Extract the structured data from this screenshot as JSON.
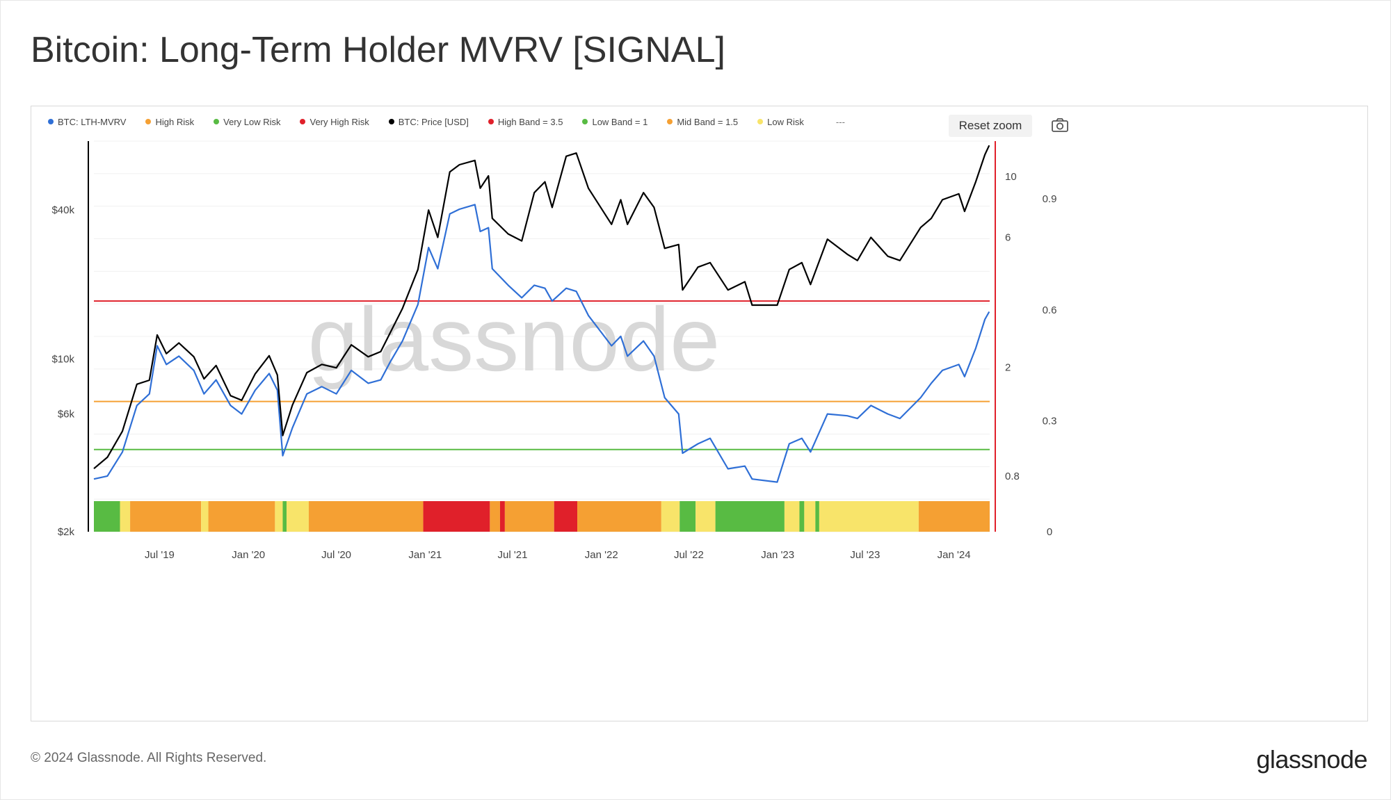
{
  "title": "Bitcoin: Long-Term Holder MVRV [SIGNAL]",
  "footer": {
    "copyright": "© 2024 Glassnode. All Rights Reserved.",
    "logo": "glassnode"
  },
  "toolbar": {
    "reset_zoom": "Reset zoom",
    "camera_icon": "camera-icon"
  },
  "watermark": "glassnode",
  "legend": [
    {
      "label": "BTC: LTH-MVRV",
      "color": "#2f6fd6"
    },
    {
      "label": "High Risk",
      "color": "#f5a033"
    },
    {
      "label": "Very Low Risk",
      "color": "#58bb43"
    },
    {
      "label": "Very High Risk",
      "color": "#e0202a"
    },
    {
      "label": "BTC: Price [USD]",
      "color": "#000000"
    },
    {
      "label": "High Band = 3.5",
      "color": "#e0202a"
    },
    {
      "label": "Low Band = 1",
      "color": "#58bb43"
    },
    {
      "label": "Mid Band = 1.5",
      "color": "#f5a033"
    },
    {
      "label": "Low Risk",
      "color": "#f8e46a"
    }
  ],
  "legend_more": "---",
  "chart_data": {
    "type": "line",
    "x_type": "date",
    "x_range": [
      "2019-02-15",
      "2024-03-15"
    ],
    "x_ticks": [
      {
        "date": "2019-07-01",
        "label": "Jul '19"
      },
      {
        "date": "2020-01-01",
        "label": "Jan '20"
      },
      {
        "date": "2020-07-01",
        "label": "Jul '20"
      },
      {
        "date": "2021-01-01",
        "label": "Jan '21"
      },
      {
        "date": "2021-07-01",
        "label": "Jul '21"
      },
      {
        "date": "2022-01-01",
        "label": "Jan '22"
      },
      {
        "date": "2022-07-01",
        "label": "Jul '22"
      },
      {
        "date": "2023-01-01",
        "label": "Jan '23"
      },
      {
        "date": "2023-07-01",
        "label": "Jul '23"
      },
      {
        "date": "2024-01-01",
        "label": "Jan '24"
      }
    ],
    "axes": {
      "price": {
        "scale": "log",
        "ticks": [
          {
            "value": 2000,
            "label": "$2k"
          },
          {
            "value": 6000,
            "label": "$6k"
          },
          {
            "value": 10000,
            "label": "$10k"
          },
          {
            "value": 40000,
            "label": "$40k"
          }
        ]
      },
      "mvrv": {
        "scale": "log",
        "ticks": [
          {
            "value": 0.8,
            "label": "0.8"
          },
          {
            "value": 2,
            "label": "2"
          },
          {
            "value": 6,
            "label": "6"
          },
          {
            "value": 10,
            "label": "10"
          }
        ]
      },
      "signal": {
        "ticks": [
          {
            "value": 0,
            "label": "0"
          },
          {
            "value": 0.3,
            "label": "0.3"
          },
          {
            "value": 0.6,
            "label": "0.6"
          },
          {
            "value": 0.9,
            "label": "0.9"
          }
        ]
      }
    },
    "bands": [
      {
        "name": "High Band = 3.5",
        "value": 3.5,
        "color": "#e0202a"
      },
      {
        "name": "Mid Band = 1.5",
        "value": 1.5,
        "color": "#f5a033"
      },
      {
        "name": "Low Band = 1",
        "value": 1,
        "color": "#58bb43"
      }
    ],
    "series": [
      {
        "name": "BTC: Price [USD]",
        "color": "#000000",
        "axis": "price",
        "points": [
          [
            "2019-02-15",
            3600
          ],
          [
            "2019-03-15",
            4000
          ],
          [
            "2019-04-15",
            5100
          ],
          [
            "2019-05-15",
            7900
          ],
          [
            "2019-06-10",
            8200
          ],
          [
            "2019-06-26",
            12500
          ],
          [
            "2019-07-15",
            10500
          ],
          [
            "2019-08-10",
            11600
          ],
          [
            "2019-09-10",
            10200
          ],
          [
            "2019-10-01",
            8300
          ],
          [
            "2019-10-26",
            9400
          ],
          [
            "2019-11-25",
            7100
          ],
          [
            "2019-12-18",
            6800
          ],
          [
            "2020-01-15",
            8700
          ],
          [
            "2020-02-13",
            10300
          ],
          [
            "2020-03-01",
            8600
          ],
          [
            "2020-03-12",
            4900
          ],
          [
            "2020-04-01",
            6500
          ],
          [
            "2020-05-01",
            8800
          ],
          [
            "2020-06-01",
            9500
          ],
          [
            "2020-07-01",
            9200
          ],
          [
            "2020-08-01",
            11400
          ],
          [
            "2020-09-05",
            10200
          ],
          [
            "2020-10-01",
            10700
          ],
          [
            "2020-10-21",
            12800
          ],
          [
            "2020-11-15",
            16000
          ],
          [
            "2020-12-17",
            23000
          ],
          [
            "2021-01-08",
            40000
          ],
          [
            "2021-01-27",
            31000
          ],
          [
            "2021-02-21",
            57000
          ],
          [
            "2021-03-13",
            61000
          ],
          [
            "2021-04-14",
            63500
          ],
          [
            "2021-04-25",
            49000
          ],
          [
            "2021-05-12",
            55000
          ],
          [
            "2021-05-20",
            37000
          ],
          [
            "2021-06-22",
            32000
          ],
          [
            "2021-07-20",
            30000
          ],
          [
            "2021-08-15",
            47000
          ],
          [
            "2021-09-06",
            52000
          ],
          [
            "2021-09-21",
            41000
          ],
          [
            "2021-10-20",
            66000
          ],
          [
            "2021-11-10",
            68000
          ],
          [
            "2021-12-05",
            49000
          ],
          [
            "2022-01-22",
            35000
          ],
          [
            "2022-02-10",
            44000
          ],
          [
            "2022-02-24",
            35000
          ],
          [
            "2022-03-29",
            47000
          ],
          [
            "2022-04-20",
            41000
          ],
          [
            "2022-05-12",
            28000
          ],
          [
            "2022-06-10",
            29000
          ],
          [
            "2022-06-18",
            19000
          ],
          [
            "2022-07-20",
            23500
          ],
          [
            "2022-08-14",
            24500
          ],
          [
            "2022-09-20",
            19000
          ],
          [
            "2022-10-25",
            20500
          ],
          [
            "2022-11-09",
            16500
          ],
          [
            "2022-12-31",
            16500
          ],
          [
            "2023-01-25",
            23000
          ],
          [
            "2023-02-20",
            24500
          ],
          [
            "2023-03-10",
            20000
          ],
          [
            "2023-04-14",
            30500
          ],
          [
            "2023-05-25",
            26500
          ],
          [
            "2023-06-15",
            25000
          ],
          [
            "2023-07-13",
            31000
          ],
          [
            "2023-08-17",
            26000
          ],
          [
            "2023-09-11",
            25000
          ],
          [
            "2023-10-24",
            34000
          ],
          [
            "2023-11-15",
            37000
          ],
          [
            "2023-12-08",
            44000
          ],
          [
            "2024-01-11",
            46500
          ],
          [
            "2024-01-23",
            39500
          ],
          [
            "2024-02-15",
            52000
          ],
          [
            "2024-03-05",
            67000
          ],
          [
            "2024-03-14",
            73000
          ]
        ]
      },
      {
        "name": "BTC: LTH-MVRV",
        "color": "#2f6fd6",
        "axis": "mvrv",
        "points": [
          [
            "2019-02-15",
            0.78
          ],
          [
            "2019-03-15",
            0.8
          ],
          [
            "2019-04-15",
            0.98
          ],
          [
            "2019-05-15",
            1.45
          ],
          [
            "2019-06-10",
            1.6
          ],
          [
            "2019-06-26",
            2.4
          ],
          [
            "2019-07-15",
            2.05
          ],
          [
            "2019-08-10",
            2.2
          ],
          [
            "2019-09-10",
            1.95
          ],
          [
            "2019-10-01",
            1.6
          ],
          [
            "2019-10-26",
            1.8
          ],
          [
            "2019-11-25",
            1.45
          ],
          [
            "2019-12-18",
            1.35
          ],
          [
            "2020-01-15",
            1.65
          ],
          [
            "2020-02-13",
            1.9
          ],
          [
            "2020-03-01",
            1.65
          ],
          [
            "2020-03-12",
            0.95
          ],
          [
            "2020-04-01",
            1.2
          ],
          [
            "2020-05-01",
            1.6
          ],
          [
            "2020-06-01",
            1.7
          ],
          [
            "2020-07-01",
            1.6
          ],
          [
            "2020-08-01",
            1.95
          ],
          [
            "2020-09-05",
            1.75
          ],
          [
            "2020-10-01",
            1.8
          ],
          [
            "2020-10-21",
            2.1
          ],
          [
            "2020-11-15",
            2.5
          ],
          [
            "2020-12-17",
            3.4
          ],
          [
            "2021-01-08",
            5.5
          ],
          [
            "2021-01-27",
            4.6
          ],
          [
            "2021-02-21",
            7.3
          ],
          [
            "2021-03-13",
            7.6
          ],
          [
            "2021-04-14",
            7.9
          ],
          [
            "2021-04-25",
            6.3
          ],
          [
            "2021-05-12",
            6.5
          ],
          [
            "2021-05-20",
            4.6
          ],
          [
            "2021-06-22",
            4.0
          ],
          [
            "2021-07-20",
            3.6
          ],
          [
            "2021-08-15",
            4.0
          ],
          [
            "2021-09-06",
            3.9
          ],
          [
            "2021-09-21",
            3.5
          ],
          [
            "2021-10-20",
            3.9
          ],
          [
            "2021-11-10",
            3.8
          ],
          [
            "2021-12-05",
            3.1
          ],
          [
            "2022-01-22",
            2.4
          ],
          [
            "2022-02-10",
            2.6
          ],
          [
            "2022-02-24",
            2.2
          ],
          [
            "2022-03-29",
            2.5
          ],
          [
            "2022-04-20",
            2.2
          ],
          [
            "2022-05-12",
            1.55
          ],
          [
            "2022-06-10",
            1.35
          ],
          [
            "2022-06-18",
            0.97
          ],
          [
            "2022-07-20",
            1.05
          ],
          [
            "2022-08-14",
            1.1
          ],
          [
            "2022-09-20",
            0.85
          ],
          [
            "2022-10-25",
            0.87
          ],
          [
            "2022-11-09",
            0.78
          ],
          [
            "2022-12-31",
            0.76
          ],
          [
            "2023-01-25",
            1.05
          ],
          [
            "2023-02-20",
            1.1
          ],
          [
            "2023-03-10",
            0.98
          ],
          [
            "2023-04-14",
            1.35
          ],
          [
            "2023-05-25",
            1.33
          ],
          [
            "2023-06-15",
            1.3
          ],
          [
            "2023-07-13",
            1.45
          ],
          [
            "2023-08-17",
            1.35
          ],
          [
            "2023-09-11",
            1.3
          ],
          [
            "2023-10-24",
            1.55
          ],
          [
            "2023-11-15",
            1.75
          ],
          [
            "2023-12-08",
            1.95
          ],
          [
            "2024-01-11",
            2.05
          ],
          [
            "2024-01-23",
            1.85
          ],
          [
            "2024-02-15",
            2.35
          ],
          [
            "2024-03-05",
            3.0
          ],
          [
            "2024-03-14",
            3.2
          ]
        ]
      }
    ],
    "risk_signal": {
      "name": "Signal",
      "levels": {
        "very_low": "#58bb43",
        "low": "#f8e46a",
        "high": "#f5a033",
        "very_high": "#e0202a"
      },
      "segments": [
        [
          "2019-02-15",
          "2019-04-10",
          "very_low"
        ],
        [
          "2019-04-10",
          "2019-05-01",
          "low"
        ],
        [
          "2019-05-01",
          "2019-09-25",
          "high"
        ],
        [
          "2019-09-25",
          "2019-10-10",
          "low"
        ],
        [
          "2019-10-10",
          "2020-02-25",
          "high"
        ],
        [
          "2020-02-25",
          "2020-03-12",
          "low"
        ],
        [
          "2020-03-12",
          "2020-03-20",
          "very_low"
        ],
        [
          "2020-03-20",
          "2020-05-05",
          "low"
        ],
        [
          "2020-05-05",
          "2020-12-28",
          "high"
        ],
        [
          "2020-12-28",
          "2021-05-15",
          "very_high"
        ],
        [
          "2021-05-15",
          "2021-06-05",
          "high"
        ],
        [
          "2021-06-05",
          "2021-06-15",
          "very_high"
        ],
        [
          "2021-06-15",
          "2021-09-25",
          "high"
        ],
        [
          "2021-09-25",
          "2021-11-12",
          "very_high"
        ],
        [
          "2021-11-12",
          "2022-05-05",
          "high"
        ],
        [
          "2022-05-05",
          "2022-06-12",
          "low"
        ],
        [
          "2022-06-12",
          "2022-07-15",
          "very_low"
        ],
        [
          "2022-07-15",
          "2022-08-25",
          "low"
        ],
        [
          "2022-08-25",
          "2023-01-15",
          "very_low"
        ],
        [
          "2023-01-15",
          "2023-02-15",
          "low"
        ],
        [
          "2023-02-15",
          "2023-02-25",
          "very_low"
        ],
        [
          "2023-02-25",
          "2023-03-20",
          "low"
        ],
        [
          "2023-03-20",
          "2023-03-28",
          "very_low"
        ],
        [
          "2023-03-28",
          "2023-10-20",
          "low"
        ],
        [
          "2023-10-20",
          "2024-03-15",
          "high"
        ]
      ]
    }
  }
}
